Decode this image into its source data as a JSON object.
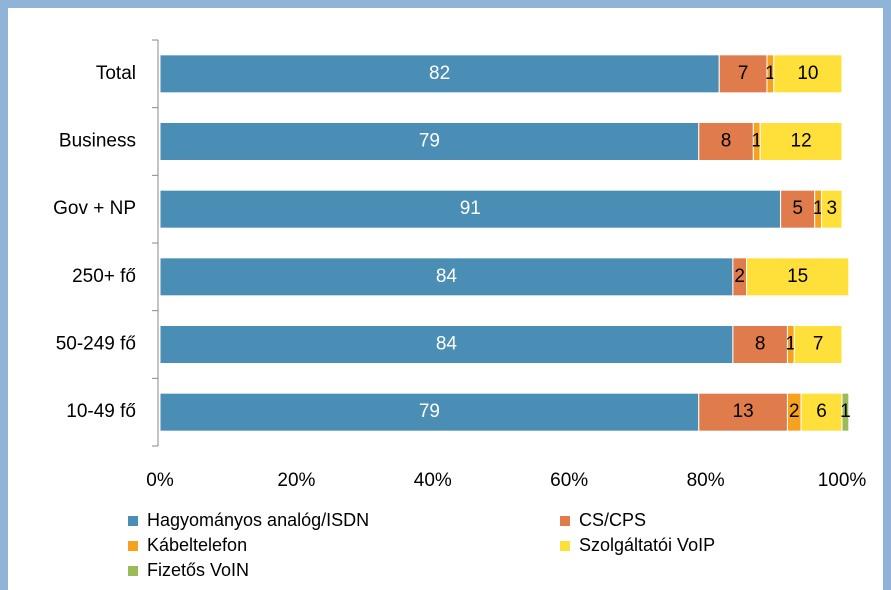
{
  "chart_data": {
    "type": "stacked-barh",
    "categories": [
      "Total",
      "Business",
      "Gov + NP",
      "250+ fő",
      "50-249 fő",
      "10-49 fő"
    ],
    "series": [
      {
        "name": "Hagyományos analóg/ISDN",
        "color": "#4a8db5",
        "values": [
          82,
          79,
          91,
          84,
          84,
          79
        ]
      },
      {
        "name": "CS/CPS",
        "color": "#e07b4c",
        "values": [
          7,
          8,
          5,
          2,
          8,
          13
        ]
      },
      {
        "name": "Kábeltelefon",
        "color": "#f7a21f",
        "values": [
          1,
          1,
          1,
          null,
          1,
          2
        ]
      },
      {
        "name": "Szolgáltatói VoIP",
        "color": "#ffe03a",
        "values": [
          10,
          12,
          3,
          15,
          7,
          6
        ]
      },
      {
        "name": "Fizetős VoIN",
        "color": "#9bbb59",
        "values": [
          null,
          null,
          null,
          null,
          null,
          1
        ]
      }
    ],
    "xlim": [
      0,
      100
    ],
    "xticks": [
      {
        "value": 0,
        "label": "0%"
      },
      {
        "value": 20,
        "label": "20%"
      },
      {
        "value": 40,
        "label": "40%"
      },
      {
        "value": 60,
        "label": "60%"
      },
      {
        "value": 80,
        "label": "80%"
      },
      {
        "value": 100,
        "label": "100%"
      }
    ],
    "legend": "bottom"
  }
}
